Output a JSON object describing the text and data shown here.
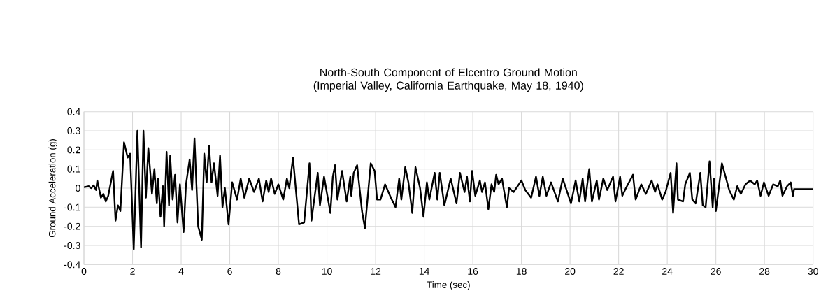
{
  "chart_data": {
    "type": "line",
    "title": "North-South Component of Elcentro Ground Motion (Imperial Valley, California Earthquake, May 18, 1940)",
    "xlabel": "Time (sec)",
    "ylabel": "Ground Acceleration (g)",
    "xlim": [
      0,
      30
    ],
    "ylim": [
      -0.4,
      0.4
    ],
    "xticks": [
      0,
      2,
      4,
      6,
      8,
      10,
      12,
      14,
      16,
      18,
      20,
      22,
      24,
      26,
      28,
      30
    ],
    "yticks": [
      -0.4,
      -0.3,
      -0.2,
      -0.1,
      0,
      0.1,
      0.2,
      0.3,
      0.4
    ],
    "grid": true,
    "series": [
      {
        "color": "#000000",
        "x": [
          0,
          0.2,
          0.3,
          0.4,
          0.5,
          0.55,
          0.7,
          0.8,
          0.9,
          1.0,
          1.2,
          1.3,
          1.4,
          1.5,
          1.65,
          1.8,
          1.9,
          2.05,
          2.2,
          2.35,
          2.45,
          2.55,
          2.65,
          2.8,
          2.9,
          3.0,
          3.05,
          3.15,
          3.25,
          3.3,
          3.4,
          3.5,
          3.55,
          3.65,
          3.75,
          3.85,
          3.95,
          4.1,
          4.2,
          4.35,
          4.45,
          4.55,
          4.7,
          4.85,
          4.95,
          5.05,
          5.15,
          5.25,
          5.35,
          5.5,
          5.6,
          5.7,
          5.8,
          5.95,
          6.1,
          6.3,
          6.45,
          6.6,
          6.8,
          7.0,
          7.2,
          7.35,
          7.5,
          7.6,
          7.7,
          7.85,
          8.0,
          8.2,
          8.35,
          8.45,
          8.6,
          8.85,
          9.06,
          9.28,
          9.36,
          9.62,
          9.71,
          9.88,
          10.14,
          10.24,
          10.33,
          10.43,
          10.62,
          10.81,
          10.96,
          11.0,
          11.1,
          11.24,
          11.44,
          11.56,
          11.8,
          11.96,
          12.06,
          12.2,
          12.39,
          12.63,
          12.82,
          12.97,
          13.06,
          13.22,
          13.35,
          13.51,
          13.64,
          13.83,
          13.97,
          14.11,
          14.21,
          14.43,
          14.54,
          14.64,
          14.83,
          15.09,
          15.33,
          15.47,
          15.66,
          15.76,
          15.88,
          15.97,
          16.1,
          16.29,
          16.38,
          16.5,
          16.64,
          16.77,
          16.88,
          16.96,
          17.06,
          17.2,
          17.4,
          17.49,
          17.68,
          18.0,
          18.16,
          18.4,
          18.6,
          18.74,
          18.88,
          19.03,
          19.22,
          19.5,
          19.7,
          20.04,
          20.23,
          20.38,
          20.52,
          20.62,
          20.79,
          20.9,
          21.1,
          21.19,
          21.37,
          21.53,
          21.77,
          21.87,
          22.06,
          22.15,
          22.3,
          22.59,
          22.7,
          22.93,
          23.12,
          23.36,
          23.5,
          23.6,
          23.79,
          23.93,
          24.14,
          24.24,
          24.38,
          24.44,
          24.65,
          24.74,
          24.93,
          25.03,
          25.17,
          25.36,
          25.46,
          25.58,
          25.74,
          25.87,
          25.93,
          26.0,
          26.25,
          26.55,
          26.74,
          26.88,
          27.03,
          27.22,
          27.41,
          27.6,
          27.7,
          27.84,
          27.98,
          28.17,
          28.36,
          28.55,
          28.65,
          28.74,
          28.93,
          29.08,
          29.17,
          29.22,
          30
        ],
        "values": [
          0.005,
          0.01,
          0,
          0.015,
          -0.01,
          0.04,
          -0.05,
          -0.03,
          -0.07,
          -0.04,
          0.09,
          -0.17,
          -0.09,
          -0.12,
          0.24,
          0.16,
          0.18,
          -0.32,
          0.3,
          -0.31,
          0.3,
          -0.05,
          0.21,
          -0.03,
          0.1,
          -0.08,
          0.05,
          -0.15,
          0.01,
          -0.2,
          0.19,
          -0.09,
          0.17,
          -0.06,
          0.07,
          -0.18,
          0.02,
          -0.23,
          0.02,
          0.15,
          -0.01,
          0.26,
          -0.2,
          -0.27,
          0.18,
          0.03,
          0.22,
          0.03,
          0.13,
          -0.04,
          0.17,
          -0.1,
          0,
          -0.19,
          0.03,
          -0.06,
          0.05,
          -0.05,
          0.05,
          -0.02,
          0.05,
          -0.07,
          0.04,
          -0.02,
          0.05,
          -0.03,
          0.02,
          -0.06,
          0.05,
          0.0,
          0.16,
          -0.19,
          -0.18,
          0.13,
          -0.17,
          0.08,
          -0.09,
          0.06,
          -0.13,
          0.06,
          0.12,
          -0.06,
          0.09,
          -0.07,
          0.06,
          -0.04,
          0.08,
          0.12,
          -0.12,
          -0.21,
          0.13,
          0.09,
          -0.06,
          -0.06,
          0.02,
          -0.05,
          -0.1,
          0.05,
          -0.06,
          0.11,
          0.03,
          -0.13,
          0.11,
          0,
          -0.15,
          0.03,
          -0.06,
          0.08,
          -0.06,
          0.08,
          -0.09,
          0.05,
          -0.08,
          0.08,
          -0.02,
          0.06,
          -0.07,
          0.09,
          -0.04,
          0.04,
          -0.02,
          0.03,
          -0.11,
          0.02,
          -0.02,
          0.07,
          0.02,
          0.05,
          -0.1,
          0,
          -0.02,
          0.04,
          -0.01,
          -0.05,
          0.06,
          -0.04,
          0.06,
          -0.04,
          0.03,
          -0.07,
          0.05,
          -0.08,
          0.04,
          -0.07,
          0.05,
          -0.07,
          0.1,
          -0.07,
          0.04,
          -0.06,
          0.05,
          -0.01,
          0.06,
          -0.07,
          0.06,
          -0.04,
          0,
          0.07,
          -0.06,
          0.02,
          -0.03,
          0.04,
          -0.02,
          0.02,
          -0.06,
          -0.02,
          0.08,
          -0.13,
          0.13,
          -0.06,
          -0.07,
          0.02,
          0.08,
          -0.06,
          -0.08,
          0.08,
          -0.09,
          -0.1,
          0.14,
          -0.1,
          0.05,
          -0.12,
          0.13,
          -0.01,
          -0.06,
          0.01,
          -0.03,
          0.02,
          0.04,
          0.02,
          0.04,
          -0.04,
          0.03,
          -0.04,
          0.02,
          0.01,
          0.04,
          -0.04,
          0.01,
          0.03,
          -0.04,
          -0.005,
          -0.005
        ]
      }
    ]
  }
}
